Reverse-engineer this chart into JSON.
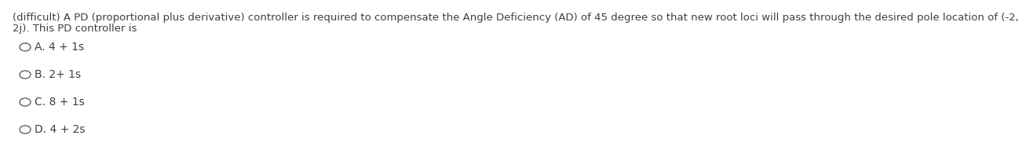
{
  "question_line1": "(difficult) A PD (proportional plus derivative) controller is required to compensate the Angle Deficiency (AD) of 45 degree so that new root loci will pass through the desired pole location of (-2,",
  "question_line2": "2j). This PD controller is",
  "options": [
    "A. 4 + 1s",
    "B. 2+ 1s",
    "C. 8 + 1s",
    "D. 4 + 2s"
  ],
  "circle_color": "#606060",
  "text_color": "#404040",
  "background_color": "#ffffff",
  "question_fontsize": 9.5,
  "option_fontsize": 10.0,
  "fig_width": 12.0,
  "fig_height": 1.85
}
